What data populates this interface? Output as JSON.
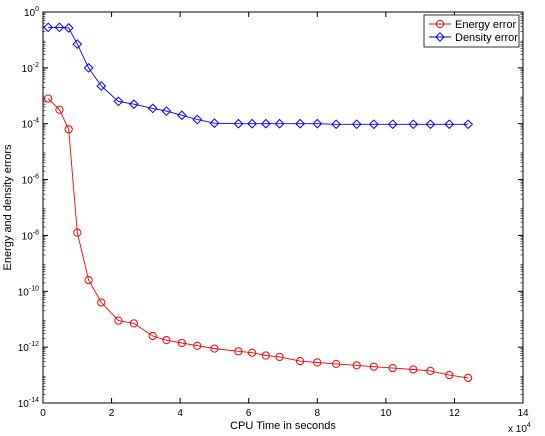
{
  "chart_data": {
    "type": "line",
    "title": "",
    "xlabel": "CPU Time in seconds",
    "ylabel": "Energy and density errors",
    "x_multiplier_label": "x 10",
    "x_multiplier_exp": "4",
    "xlim": [
      0,
      14
    ],
    "ylim_log10": [
      -14,
      0
    ],
    "y_scale": "log",
    "grid": false,
    "legend_position": "top-right",
    "x_ticks": [
      0,
      2,
      4,
      6,
      8,
      10,
      12,
      14
    ],
    "x_tick_labels": [
      "0",
      "2",
      "4",
      "6",
      "8",
      "10",
      "12",
      "14"
    ],
    "y_ticks_log10": [
      0,
      -2,
      -4,
      -6,
      -8,
      -10,
      -12,
      -14
    ],
    "y_tick_base": "10",
    "y_tick_exponents": [
      "0",
      "-2",
      "-4",
      "-6",
      "-8",
      "-10",
      "-12",
      "-14"
    ],
    "series": [
      {
        "name": "Energy error",
        "color": "#ff0000",
        "marker": "circle",
        "x": [
          0.15,
          0.48,
          0.75,
          1.0,
          1.33,
          1.7,
          2.2,
          2.65,
          3.2,
          3.6,
          4.05,
          4.5,
          5.0,
          5.7,
          6.1,
          6.5,
          6.9,
          7.5,
          8.0,
          8.55,
          9.15,
          9.65,
          10.2,
          10.8,
          11.3,
          11.85,
          12.4
        ],
        "y_log10": [
          -3.1,
          -3.5,
          -4.2,
          -7.9,
          -9.6,
          -10.4,
          -11.05,
          -11.15,
          -11.6,
          -11.75,
          -11.85,
          -11.95,
          -12.05,
          -12.15,
          -12.2,
          -12.3,
          -12.35,
          -12.5,
          -12.55,
          -12.6,
          -12.65,
          -12.7,
          -12.75,
          -12.8,
          -12.85,
          -13.0,
          -13.1
        ]
      },
      {
        "name": "Density error",
        "color": "#0000ff",
        "marker": "diamond",
        "x": [
          0.15,
          0.48,
          0.75,
          1.0,
          1.33,
          1.7,
          2.2,
          2.65,
          3.2,
          3.6,
          4.05,
          4.5,
          5.0,
          5.7,
          6.1,
          6.5,
          6.9,
          7.5,
          8.0,
          8.55,
          9.15,
          9.65,
          10.2,
          10.8,
          11.3,
          11.85,
          12.4
        ],
        "y_log10": [
          -0.55,
          -0.55,
          -0.57,
          -1.15,
          -2.0,
          -2.65,
          -3.2,
          -3.3,
          -3.45,
          -3.55,
          -3.7,
          -3.85,
          -3.98,
          -4.0,
          -4.0,
          -4.0,
          -4.0,
          -4.0,
          -4.0,
          -4.02,
          -4.02,
          -4.02,
          -4.02,
          -4.02,
          -4.02,
          -4.02,
          -4.02
        ]
      }
    ]
  }
}
